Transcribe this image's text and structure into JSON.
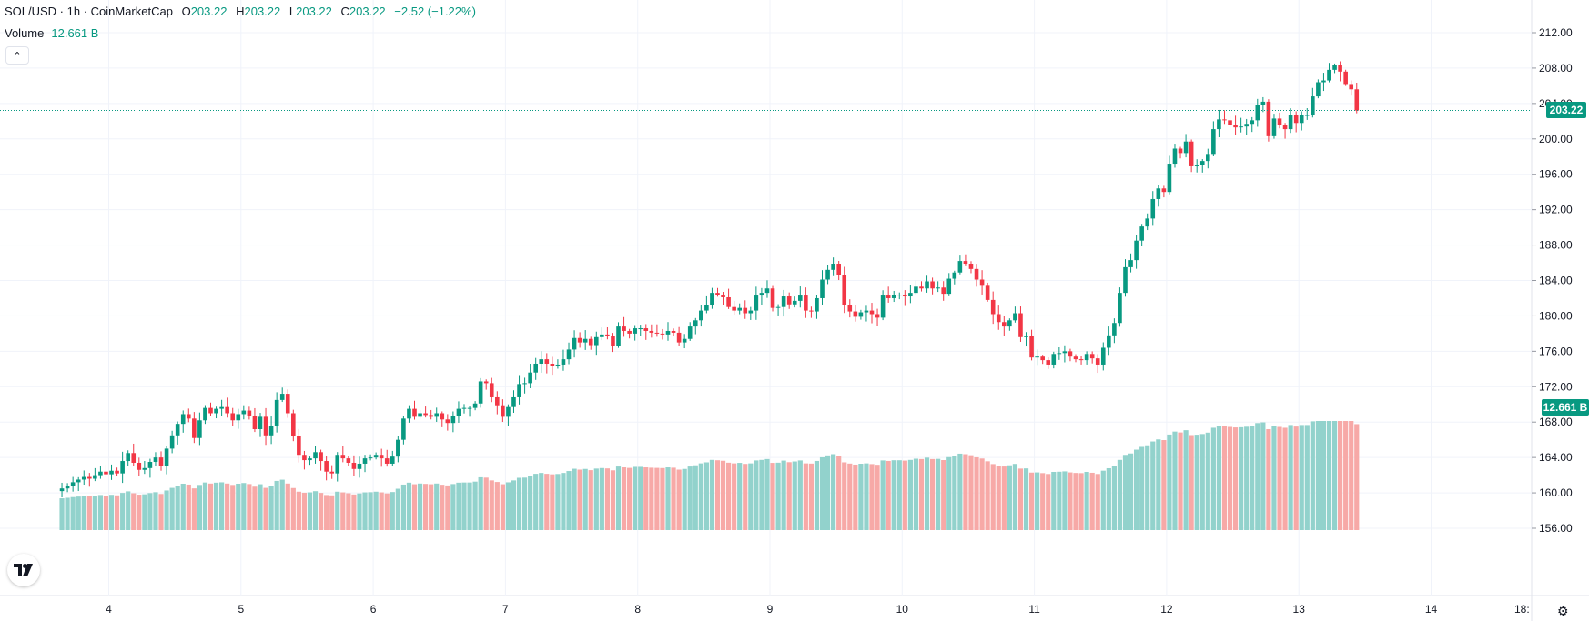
{
  "legend": {
    "symbol": "SOL/USD · 1h · CoinMarketCap",
    "o_label": "O",
    "o_value": "203.22",
    "h_label": "H",
    "h_value": "203.22",
    "l_label": "L",
    "l_value": "203.22",
    "c_label": "C",
    "c_value": "203.22",
    "change": "−2.52 (−1.22%)"
  },
  "volume_legend": {
    "label": "Volume",
    "value": "12.661 B"
  },
  "collapse_icon": "chevron-up-icon",
  "price_tag": "203.22",
  "volume_tag": "12.661 B",
  "axis_cut_label": "18:",
  "colors": {
    "up": "#089981",
    "down": "#f23645",
    "vol_up": "#92d2cc",
    "vol_down": "#f7a9a7",
    "grid": "#f0f3fa"
  },
  "chart_data": {
    "type": "candlestick",
    "title": "SOL/USD · 1h · CoinMarketCap",
    "y_ticks": [
      "212.00",
      "208.00",
      "204.00",
      "200.00",
      "196.00",
      "192.00",
      "188.00",
      "184.00",
      "180.00",
      "176.00",
      "172.00",
      "168.00",
      "164.00",
      "160.00",
      "156.00"
    ],
    "x_ticks": [
      "4",
      "5",
      "6",
      "7",
      "8",
      "9",
      "10",
      "11",
      "12",
      "13",
      "14"
    ],
    "ylim": [
      155.5,
      212.5
    ],
    "last_price": 203.22,
    "grid": true,
    "series": [
      {
        "name": "SOL/USD",
        "close_path_by_day": {
          "3": [
            160.5,
            160.8,
            161.2,
            161.5,
            161.8,
            161.6,
            162.0,
            162.4,
            162.1
          ],
          "4": [
            162.5,
            162.2,
            163.6,
            164.5,
            163.4,
            162.6,
            162.8,
            163.5,
            164.0,
            163.0,
            165.0,
            166.5,
            167.8,
            168.9,
            168.4,
            166.2,
            168.2,
            169.6,
            169.0,
            169.5,
            169.7,
            169.0,
            168.2,
            168.9
          ],
          "5": [
            169.3,
            168.7,
            167.2,
            168.6,
            166.5,
            167.6,
            170.5,
            171.2,
            169.0,
            166.4,
            164.3,
            163.7,
            163.9,
            164.6,
            163.6,
            162.4,
            162.2,
            164.3,
            163.9,
            163.4,
            162.7,
            163.3,
            163.9,
            164.0
          ],
          "6": [
            164.3,
            163.9,
            163.3,
            164.1,
            166.0,
            168.4,
            169.5,
            168.6,
            169.0,
            168.8,
            168.6,
            169.0,
            168.3,
            167.9,
            168.7,
            169.5,
            169.6,
            169.6,
            170.1,
            172.6,
            172.4,
            170.8,
            169.9,
            168.6
          ],
          "7": [
            169.7,
            170.8,
            172.3,
            172.4,
            173.6,
            174.6,
            175.1,
            174.6,
            174.3,
            174.5,
            175.1,
            176.2,
            177.5,
            177.0,
            177.4,
            176.7,
            177.6,
            177.9,
            177.7,
            176.6,
            178.8,
            178.3,
            178.0,
            178.6
          ],
          "8": [
            178.6,
            178.3,
            178.1,
            178.0,
            177.9,
            178.3,
            178.1,
            177.0,
            177.4,
            178.8,
            179.5,
            180.6,
            181.2,
            182.6,
            182.4,
            182.1,
            181.0,
            180.6,
            180.9,
            180.3,
            180.6,
            182.3,
            182.6,
            183.1
          ],
          "9": [
            180.9,
            181.0,
            182.2,
            181.3,
            181.7,
            182.3,
            180.6,
            180.5,
            182.0,
            184.1,
            185.2,
            185.9,
            184.6,
            181.2,
            180.5,
            179.9,
            180.4,
            180.6,
            180.2,
            179.8,
            182.3,
            182.0,
            182.4,
            182.4
          ],
          "10": [
            182.2,
            182.6,
            183.3,
            183.1,
            183.9,
            183.1,
            183.2,
            182.5,
            184.2,
            184.9,
            186.2,
            185.9,
            185.3,
            184.1,
            183.4,
            181.8,
            180.2,
            179.3,
            178.8,
            179.5,
            180.3,
            177.6,
            177.7,
            175.3
          ],
          "11": [
            175.4,
            175.0,
            174.5,
            175.7,
            175.8,
            176.0,
            175.4,
            175.1,
            175.0,
            175.7,
            175.2,
            174.5,
            176.4,
            177.8,
            179.2,
            182.6,
            185.5,
            186.3,
            188.5,
            190.1,
            191.0,
            193.2,
            194.4,
            194.0
          ],
          "12": [
            197.2,
            198.9,
            198.4,
            199.7,
            196.9,
            197.1,
            197.5,
            198.3,
            201.1,
            202.2,
            202.1,
            201.6,
            201.3,
            201.4,
            201.7,
            202.1,
            203.8,
            204.2,
            200.3,
            202.3,
            201.6,
            201.1,
            202.7,
            201.8
          ],
          "13": [
            202.7,
            202.7,
            204.8,
            206.4,
            206.6,
            207.8,
            208.3,
            207.6,
            206.2,
            205.6,
            203.2
          ]
        }
      }
    ]
  }
}
